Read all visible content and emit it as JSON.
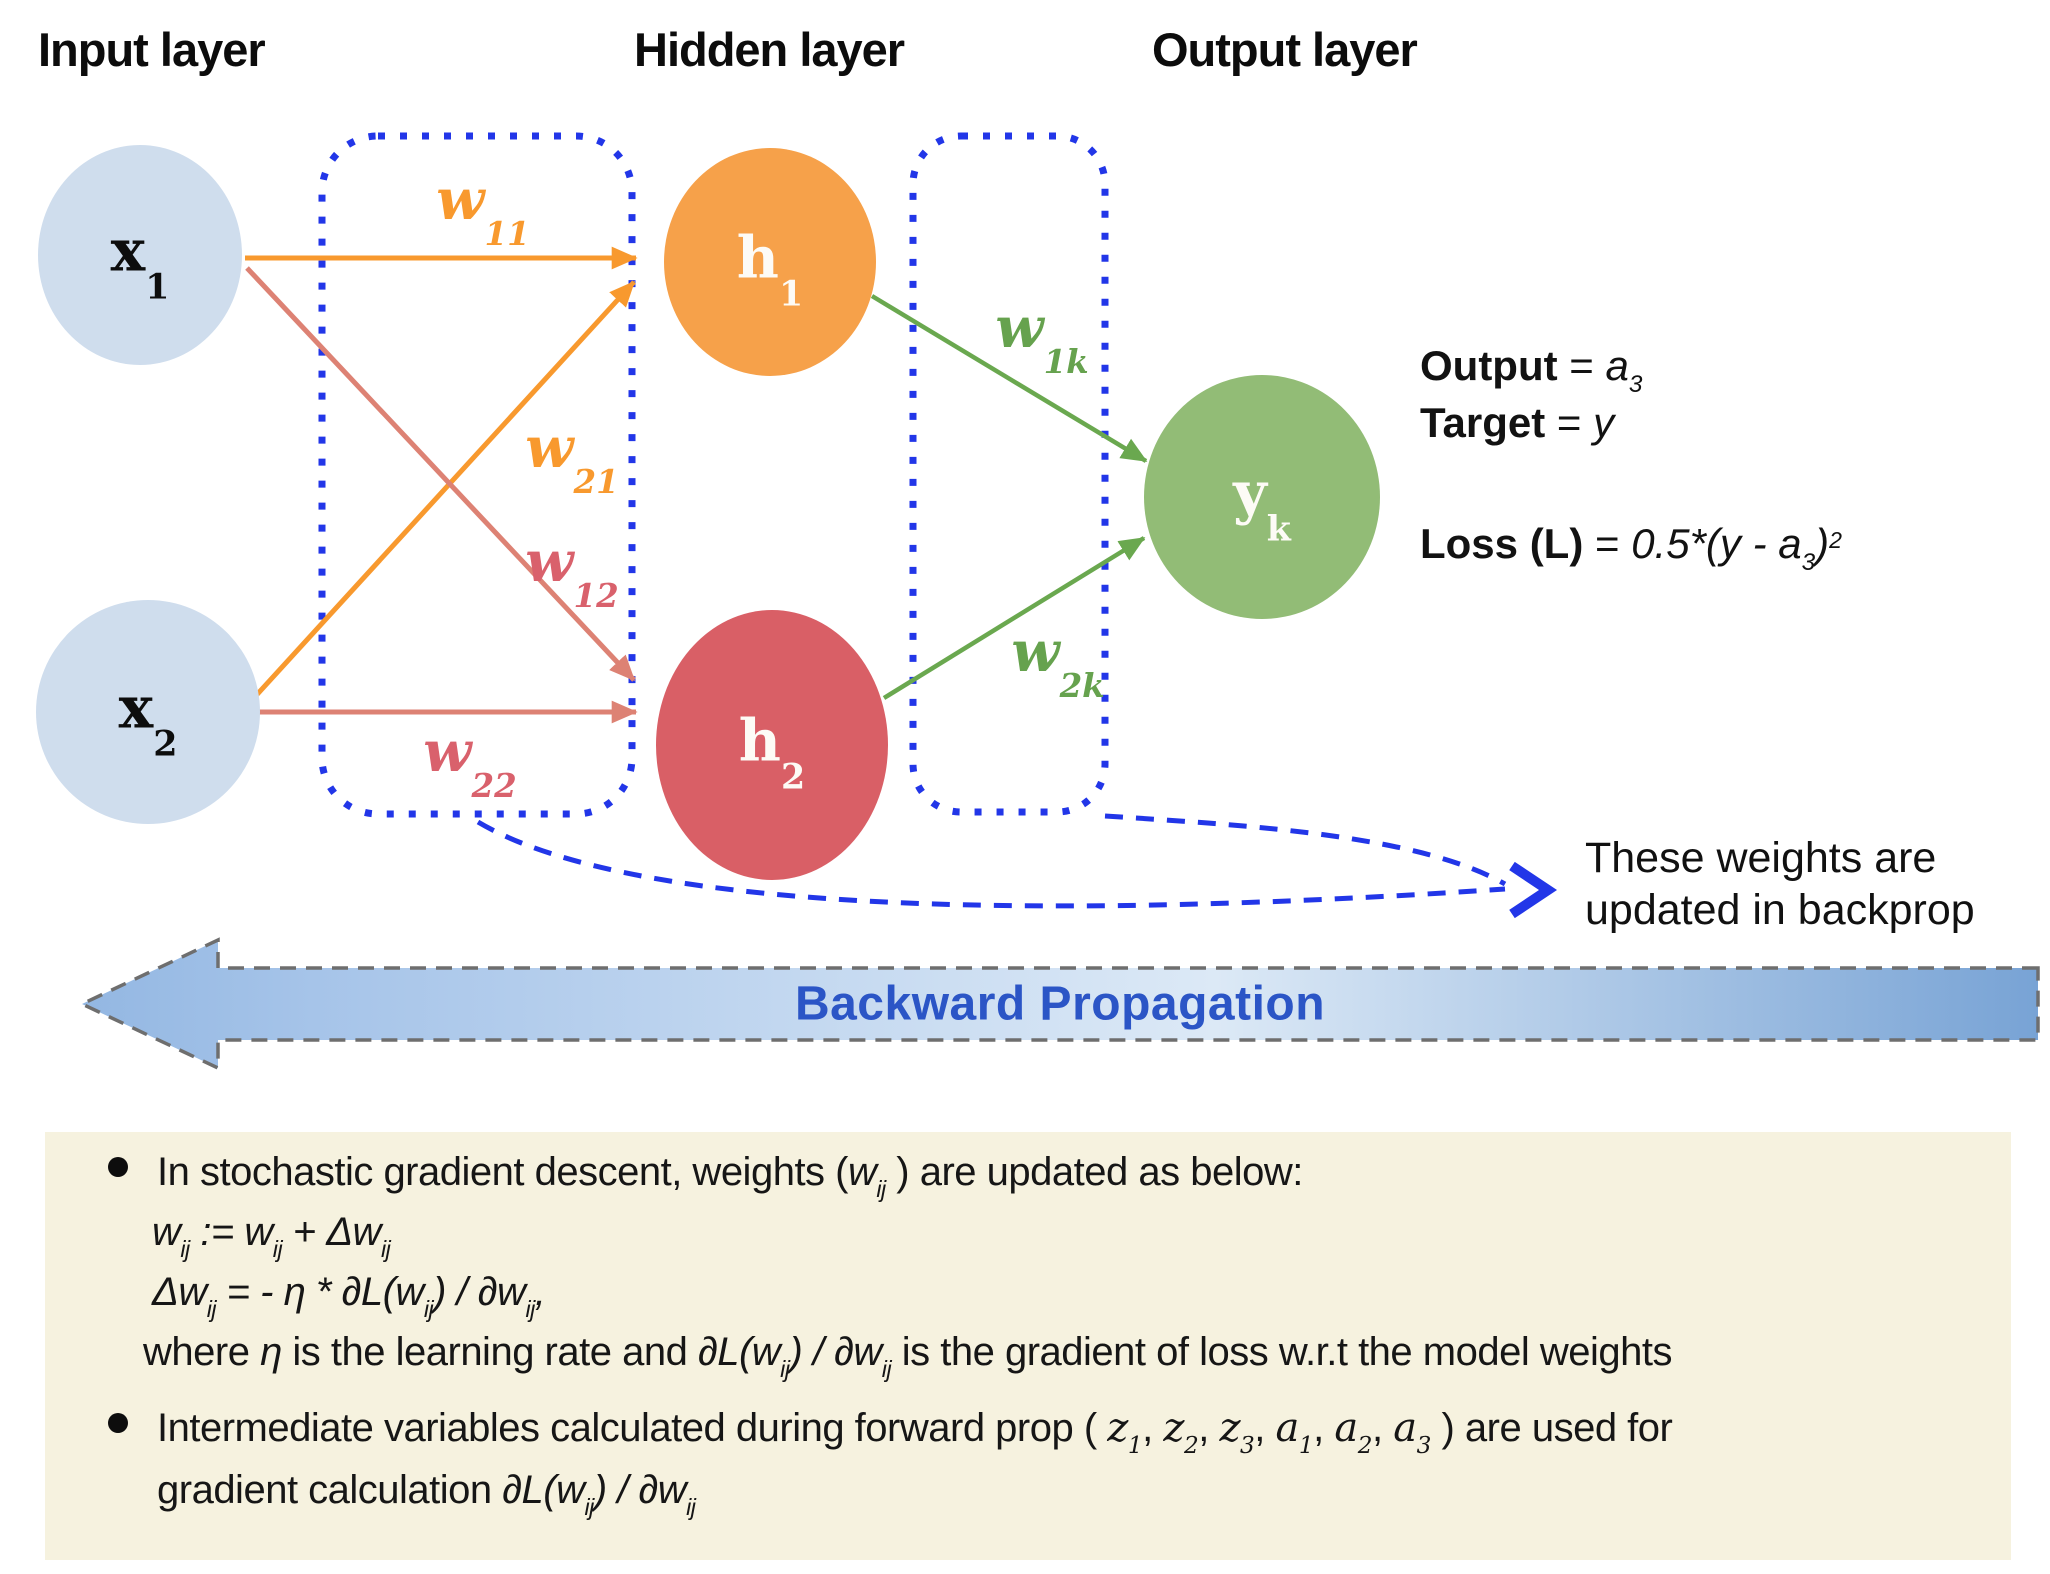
{
  "colors": {
    "node-x": "#cfdded",
    "node-h1": "#f6a14a",
    "node-h2": "#d95f66",
    "node-yk": "#92bc76",
    "orange": "#f8992e",
    "salmon": "#dd8274",
    "rose": "#d9616c",
    "green": "#6aa84f",
    "green-label": "#66a24e",
    "dotblue": "#2236e8",
    "band-text": "#2b55c6",
    "band-border": "#6e6e6e",
    "band-grad-start": "#93b7e2",
    "band-grad-mid": "#dce9f6",
    "band-grad-end": "#78a3d5",
    "note-bg": "#f6f2df"
  },
  "headers": {
    "input": "Input layer",
    "hidden": "Hidden layer",
    "output": "Output layer"
  },
  "nodes": {
    "x1": {
      "label": "x",
      "sub": "1"
    },
    "x2": {
      "label": "x",
      "sub": "2"
    },
    "h1": {
      "label": "h",
      "sub": "1"
    },
    "h2": {
      "label": "h",
      "sub": "2"
    },
    "yk": {
      "label": "y",
      "sub": "k"
    }
  },
  "weights": {
    "w11": {
      "base": "w",
      "sub": "11"
    },
    "w21": {
      "base": "w",
      "sub": "21"
    },
    "w12": {
      "base": "w",
      "sub": "12"
    },
    "w22": {
      "base": "w",
      "sub": "22"
    },
    "w1k": {
      "base": "w",
      "sub": "1k"
    },
    "w2k": {
      "base": "w",
      "sub": "2k"
    }
  },
  "output_info": {
    "lines": [
      [
        {
          "t": "Output",
          "b": true
        },
        {
          "t": " = "
        },
        {
          "t": "a",
          "i": true
        },
        {
          "t": "3",
          "sub": true,
          "i": true
        }
      ],
      [
        {
          "t": "Target",
          "b": true
        },
        {
          "t": " = "
        },
        {
          "t": "y",
          "i": true
        }
      ],
      [
        {
          "t": "Loss (L)",
          "b": true
        },
        {
          "t": " = "
        },
        {
          "t": "0.5*(y - a",
          "i": true
        },
        {
          "t": "3",
          "sub": true,
          "i": true
        },
        {
          "t": ")",
          "i": true
        },
        {
          "t": "2",
          "sup": true,
          "i": true
        }
      ]
    ]
  },
  "backprop_note": {
    "line1": "These weights are",
    "line2": "updated in backprop"
  },
  "band": {
    "label": "Backward Propagation"
  },
  "notes": {
    "lines": [
      {
        "runs": [
          {
            "t": "In stochastic gradient descent, weights ("
          },
          {
            "t": "w",
            "i": true
          },
          {
            "t": "ij",
            "sub": true,
            "i": true
          },
          {
            "t": " ) are updated as below:"
          }
        ]
      },
      {
        "runs": [
          {
            "t": "w",
            "i": true
          },
          {
            "t": "ij",
            "sub": true,
            "i": true
          },
          {
            "t": "  :=  ",
            "i": true
          },
          {
            "t": "w",
            "i": true
          },
          {
            "t": "ij",
            "sub": true,
            "i": true
          },
          {
            "t": " + ",
            "i": true
          },
          {
            "t": "Δw",
            "i": true
          },
          {
            "t": "ij",
            "sub": true,
            "i": true
          }
        ]
      },
      {
        "runs": [
          {
            "t": "Δw",
            "i": true
          },
          {
            "t": "ij",
            "sub": true,
            "i": true
          },
          {
            "t": " = - ",
            "i": true
          },
          {
            "t": "η",
            "i": true
          },
          {
            "t": " *  ",
            "i": true
          },
          {
            "t": "∂L(w",
            "i": true
          },
          {
            "t": "ij",
            "sub": true,
            "i": true
          },
          {
            "t": ") / ∂w",
            "i": true
          },
          {
            "t": "ij",
            "sub": true,
            "i": true
          },
          {
            "t": ",",
            "i": true
          }
        ]
      },
      {
        "runs": [
          {
            "t": "where "
          },
          {
            "t": "η",
            "i": true
          },
          {
            "t": " is the learning rate and "
          },
          {
            "t": "∂L(w",
            "i": true
          },
          {
            "t": "ij",
            "sub": true,
            "i": true
          },
          {
            "t": ") / ∂w",
            "i": true
          },
          {
            "t": "ij",
            "sub": true,
            "i": true
          },
          {
            "t": " is the gradient of loss w.r.t the model weights"
          }
        ]
      },
      {
        "runs": [
          {
            "t": "Intermediate variables calculated during forward prop ( "
          },
          {
            "t": "z",
            "i": true,
            "sf": true
          },
          {
            "t": "1",
            "sub": true,
            "i": true,
            "sf": true
          },
          {
            "t": ", "
          },
          {
            "t": "z",
            "i": true,
            "sf": true
          },
          {
            "t": "2",
            "sub": true,
            "i": true,
            "sf": true
          },
          {
            "t": ", "
          },
          {
            "t": "z",
            "i": true,
            "sf": true
          },
          {
            "t": "3",
            "sub": true,
            "i": true,
            "sf": true
          },
          {
            "t": ", "
          },
          {
            "t": "a",
            "i": true,
            "sf": true
          },
          {
            "t": "1",
            "sub": true,
            "i": true,
            "sf": true
          },
          {
            "t": ", "
          },
          {
            "t": "a",
            "i": true,
            "sf": true
          },
          {
            "t": "2",
            "sub": true,
            "i": true,
            "sf": true
          },
          {
            "t": ", "
          },
          {
            "t": "a",
            "i": true,
            "sf": true
          },
          {
            "t": "3",
            "sub": true,
            "i": true,
            "sf": true
          },
          {
            "t": " ) are used for"
          }
        ]
      },
      {
        "runs": [
          {
            "t": "gradient calculation  "
          },
          {
            "t": "∂L(w",
            "i": true
          },
          {
            "t": "ij",
            "sub": true,
            "i": true
          },
          {
            "t": ") / ∂w",
            "i": true
          },
          {
            "t": "ij",
            "sub": true,
            "i": true
          }
        ]
      }
    ]
  }
}
